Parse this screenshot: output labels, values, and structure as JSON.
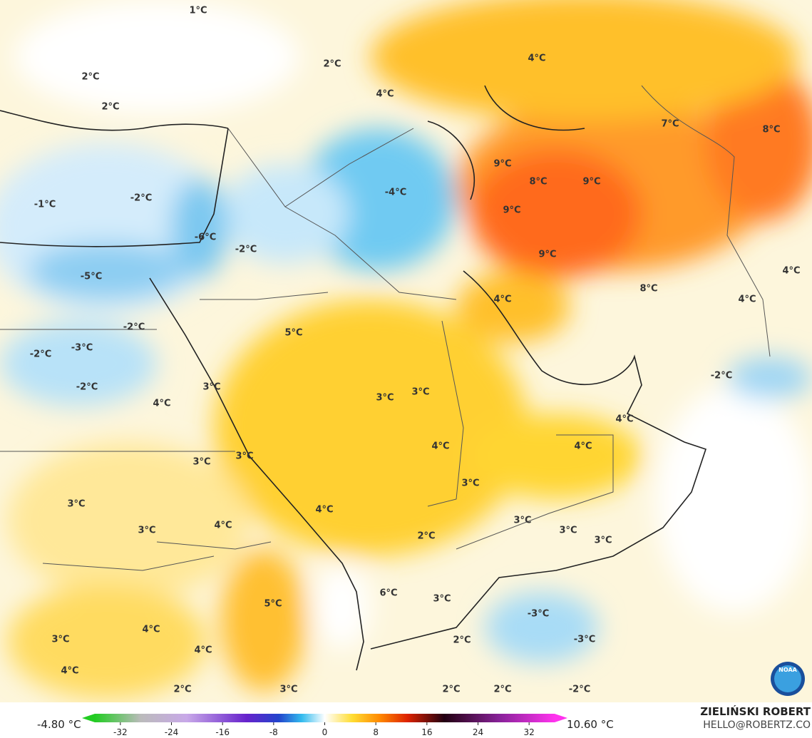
{
  "map": {
    "labels": [
      "1°C",
      "2°C",
      "2°C",
      "2°C",
      "4°C",
      "4°C",
      "7°C",
      "8°C",
      "9°C",
      "8°C",
      "9°C",
      "9°C",
      "9°C",
      "8°C",
      "4°C",
      "4°C",
      "-4°C",
      "-1°C",
      "-2°C",
      "-6°C",
      "-2°C",
      "-5°C",
      "-2°C",
      "-2°C",
      "-3°C",
      "-2°C",
      "5°C",
      "4°C",
      "3°C",
      "3°C",
      "3°C",
      "4°C",
      "4°C",
      "4°C",
      "4°C",
      "-2°C",
      "3°C",
      "3°C",
      "3°C",
      "3°C",
      "4°C",
      "3°C",
      "4°C",
      "3°C",
      "3°C",
      "2°C",
      "3°C",
      "6°C",
      "3°C",
      "5°C",
      "-3°C",
      "2°C",
      "-3°C",
      "3°C",
      "4°C",
      "4°C",
      "4°C",
      "2°C",
      "3°C",
      "2°C",
      "2°C",
      "-2°C"
    ]
  },
  "colorbar": {
    "min_label": "-4.80 °C",
    "max_label": "10.60 °C",
    "ticks": [
      -32,
      -24,
      -16,
      -8,
      0,
      8,
      16,
      24,
      32
    ],
    "range": [
      -36,
      36
    ]
  },
  "credits": {
    "author": "ZIELIŃSKI ROBERT",
    "contact": "HELLO@ROBERTZ.CO",
    "logo": "NOAA"
  }
}
